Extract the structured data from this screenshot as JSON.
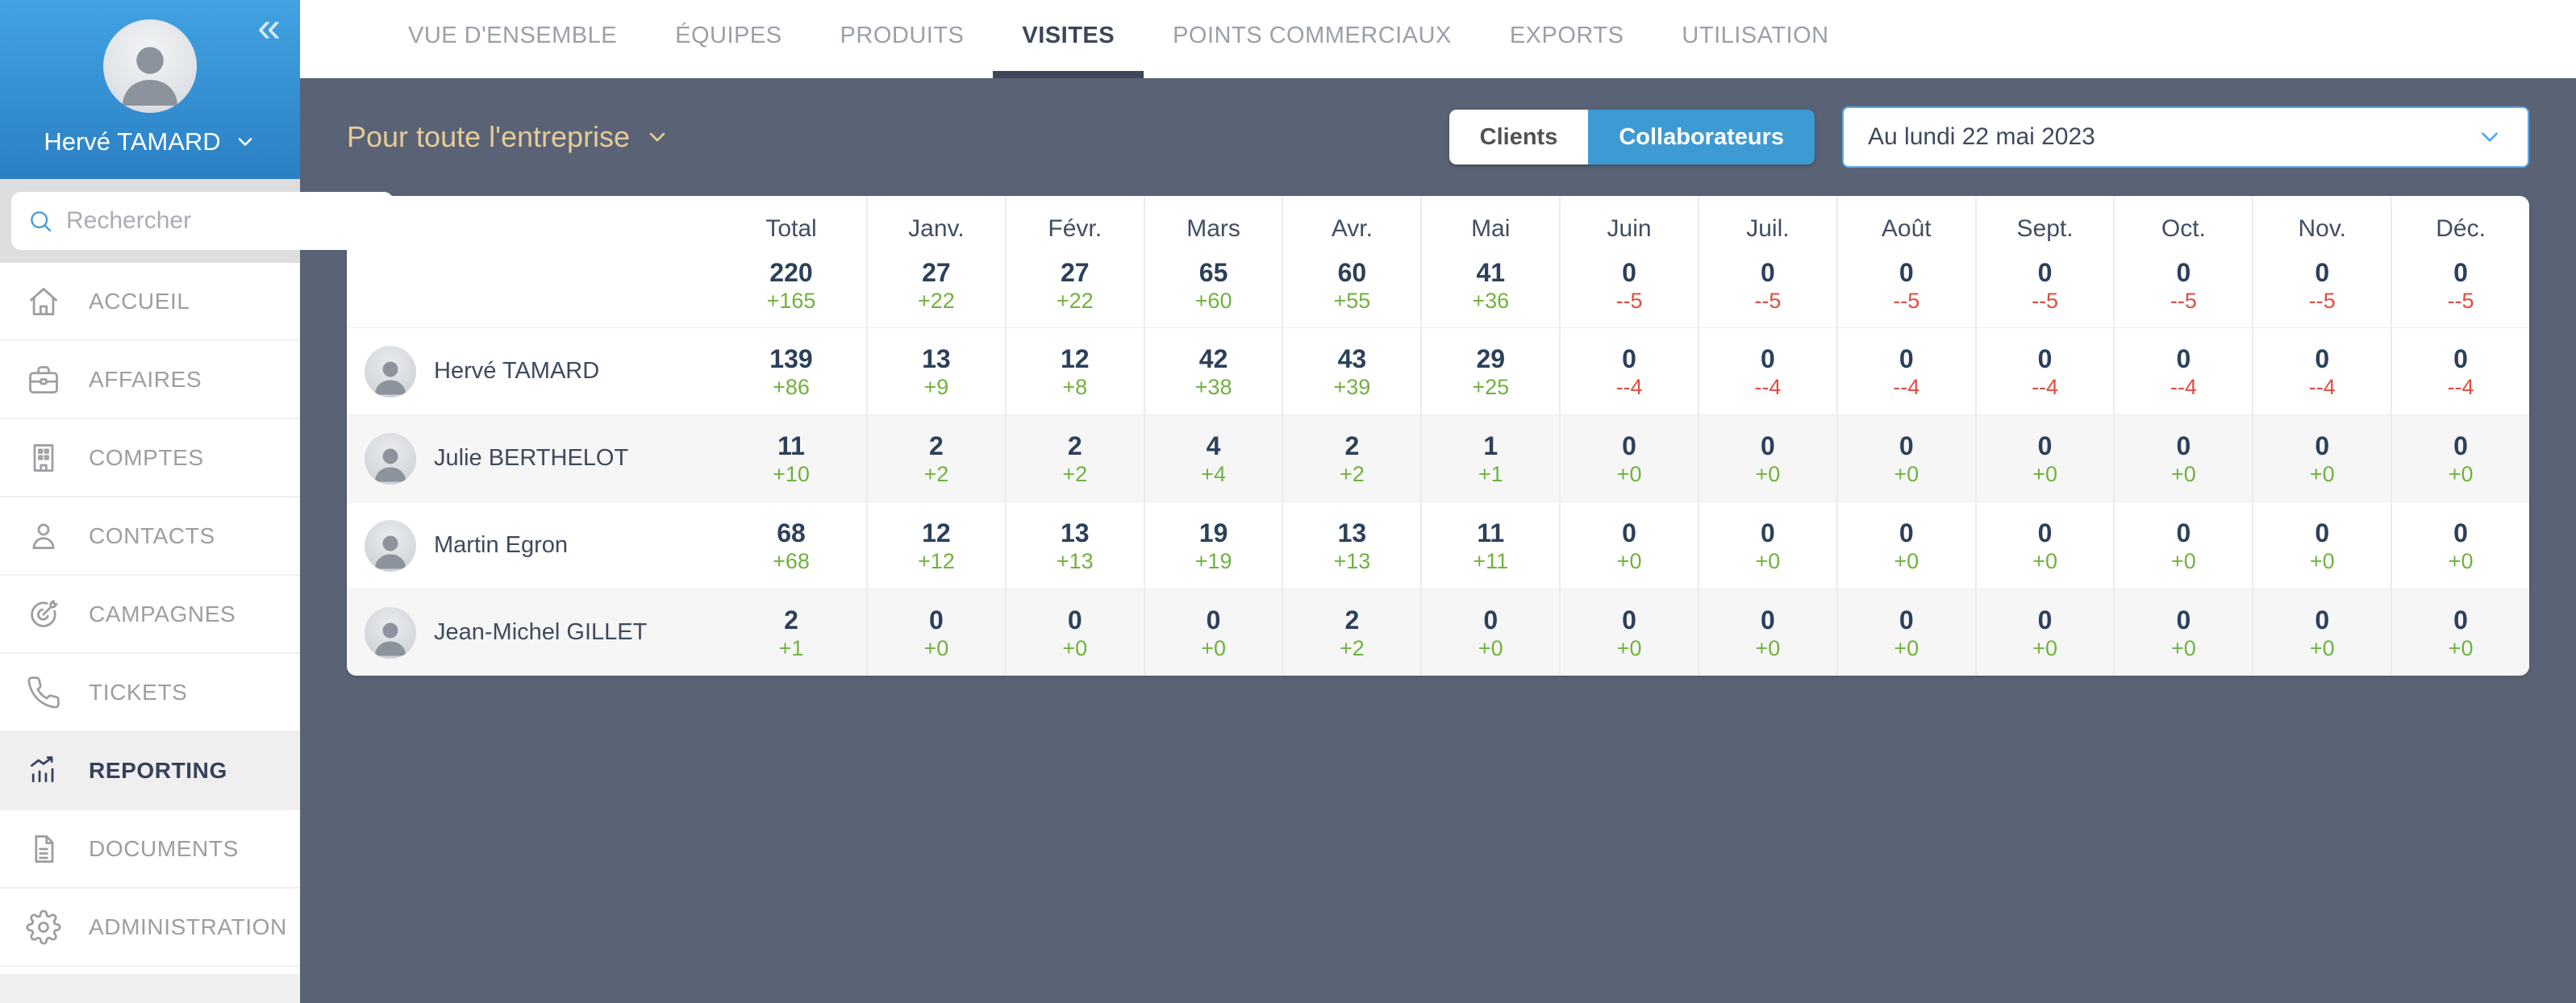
{
  "sidebar": {
    "user_name": "Hervé TAMARD",
    "search_placeholder": "Rechercher",
    "items": [
      {
        "label": "ACCUEIL",
        "icon": "home-icon"
      },
      {
        "label": "AFFAIRES",
        "icon": "briefcase-icon"
      },
      {
        "label": "COMPTES",
        "icon": "building-icon"
      },
      {
        "label": "CONTACTS",
        "icon": "person-icon"
      },
      {
        "label": "CAMPAGNES",
        "icon": "target-icon"
      },
      {
        "label": "TICKETS",
        "icon": "phone-icon"
      },
      {
        "label": "REPORTING",
        "icon": "bar-chart-icon",
        "active": true
      },
      {
        "label": "DOCUMENTS",
        "icon": "document-icon"
      },
      {
        "label": "ADMINISTRATION",
        "icon": "gear-icon"
      }
    ]
  },
  "topnav": {
    "tabs": [
      "VUE D'ENSEMBLE",
      "ÉQUIPES",
      "PRODUITS",
      "VISITES",
      "POINTS COMMERCIAUX",
      "EXPORTS",
      "UTILISATION"
    ],
    "active_tab": "VISITES"
  },
  "filters": {
    "scope_label": "Pour toute l'entreprise",
    "toggle_options": [
      "Clients",
      "Collaborateurs"
    ],
    "toggle_selected": "Collaborateurs",
    "date_value": "Au lundi 22 mai 2023"
  },
  "table": {
    "columns": [
      "Total",
      "Janv.",
      "Févr.",
      "Mars",
      "Avr.",
      "Mai",
      "Juin",
      "Juil.",
      "Août",
      "Sept.",
      "Oct.",
      "Nov.",
      "Déc."
    ],
    "totals": {
      "values": [
        "220",
        "27",
        "27",
        "65",
        "60",
        "41",
        "0",
        "0",
        "0",
        "0",
        "0",
        "0",
        "0"
      ],
      "deltas": [
        "+165",
        "+22",
        "+22",
        "+60",
        "+55",
        "+36",
        "--5",
        "--5",
        "--5",
        "--5",
        "--5",
        "--5",
        "--5"
      ]
    },
    "rows": [
      {
        "name": "Hervé TAMARD",
        "values": [
          "139",
          "13",
          "12",
          "42",
          "43",
          "29",
          "0",
          "0",
          "0",
          "0",
          "0",
          "0",
          "0"
        ],
        "deltas": [
          "+86",
          "+9",
          "+8",
          "+38",
          "+39",
          "+25",
          "--4",
          "--4",
          "--4",
          "--4",
          "--4",
          "--4",
          "--4"
        ]
      },
      {
        "name": "Julie BERTHELOT",
        "values": [
          "11",
          "2",
          "2",
          "4",
          "2",
          "1",
          "0",
          "0",
          "0",
          "0",
          "0",
          "0",
          "0"
        ],
        "deltas": [
          "+10",
          "+2",
          "+2",
          "+4",
          "+2",
          "+1",
          "+0",
          "+0",
          "+0",
          "+0",
          "+0",
          "+0",
          "+0"
        ]
      },
      {
        "name": "Martin Egron",
        "values": [
          "68",
          "12",
          "13",
          "19",
          "13",
          "11",
          "0",
          "0",
          "0",
          "0",
          "0",
          "0",
          "0"
        ],
        "deltas": [
          "+68",
          "+12",
          "+13",
          "+19",
          "+13",
          "+11",
          "+0",
          "+0",
          "+0",
          "+0",
          "+0",
          "+0",
          "+0"
        ]
      },
      {
        "name": "Jean-Michel GILLET",
        "values": [
          "2",
          "0",
          "0",
          "0",
          "2",
          "0",
          "0",
          "0",
          "0",
          "0",
          "0",
          "0",
          "0"
        ],
        "deltas": [
          "+1",
          "+0",
          "+0",
          "+0",
          "+2",
          "+0",
          "+0",
          "+0",
          "+0",
          "+0",
          "+0",
          "+0",
          "+0"
        ]
      }
    ]
  },
  "colors": {
    "accent_blue": "#3e9ad3",
    "accent_gold": "#e6cb96",
    "positive_green": "#6fb23c",
    "negative_red": "#e14b41",
    "value_navy": "#2c405a",
    "slate_background": "#5a6375"
  }
}
